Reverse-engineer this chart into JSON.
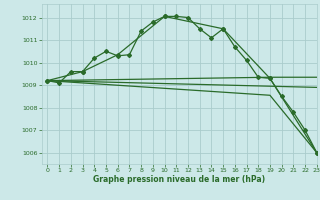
{
  "line1": {
    "x": [
      0,
      1,
      2,
      3,
      4,
      5,
      6,
      7,
      8,
      9,
      10,
      11,
      12,
      13,
      14,
      15,
      16,
      17,
      18,
      19,
      20,
      21,
      22,
      23
    ],
    "y": [
      1009.2,
      1009.1,
      1009.6,
      1009.6,
      1010.2,
      1010.5,
      1010.3,
      1010.35,
      1011.4,
      1011.8,
      1012.05,
      1012.05,
      1012.0,
      1011.5,
      1011.1,
      1011.5,
      1010.7,
      1010.1,
      1009.35,
      1009.3,
      1008.5,
      1007.8,
      1007.0,
      1006.0
    ]
  },
  "line2": {
    "x": [
      0,
      3,
      6,
      10,
      15,
      19,
      23
    ],
    "y": [
      1009.2,
      1009.6,
      1010.35,
      1012.05,
      1011.5,
      1009.3,
      1006.0
    ]
  },
  "line3": {
    "x": [
      0,
      19,
      23
    ],
    "y": [
      1009.2,
      1009.35,
      1009.35
    ]
  },
  "line4": {
    "x": [
      0,
      23
    ],
    "y": [
      1009.2,
      1008.9
    ]
  },
  "line5": {
    "x": [
      0,
      19,
      23
    ],
    "y": [
      1009.2,
      1008.55,
      1006.0
    ]
  },
  "bg_color": "#cce8e8",
  "grid_color": "#aacccc",
  "line_color": "#2a6b2a",
  "xlabel": "Graphe pression niveau de la mer (hPa)",
  "ylim": [
    1005.5,
    1012.6
  ],
  "xlim": [
    -0.5,
    23
  ],
  "yticks": [
    1006,
    1007,
    1008,
    1009,
    1010,
    1011,
    1012
  ],
  "xticks": [
    0,
    1,
    2,
    3,
    4,
    5,
    6,
    7,
    8,
    9,
    10,
    11,
    12,
    13,
    14,
    15,
    16,
    17,
    18,
    19,
    20,
    21,
    22,
    23
  ]
}
